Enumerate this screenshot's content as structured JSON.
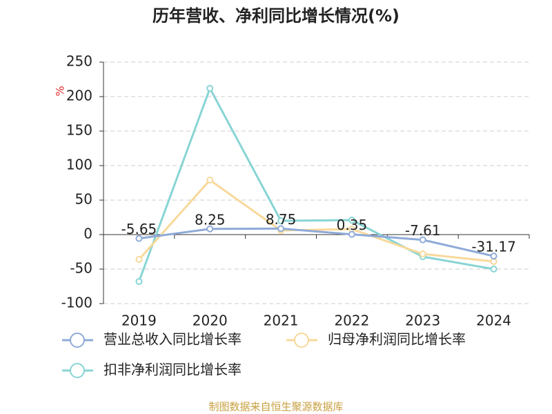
{
  "chart_data": {
    "type": "line",
    "title": "历年营收、净利同比增长情况(%)",
    "y_label": "%",
    "categories": [
      "2019",
      "2020",
      "2021",
      "2022",
      "2023",
      "2024"
    ],
    "series": [
      {
        "name": "营业总收入同比增长率",
        "color": "#8eaad8",
        "values": [
          -5.65,
          8.25,
          8.75,
          0.35,
          -7.61,
          -31.17
        ],
        "show_labels": true
      },
      {
        "name": "归母净利润同比增长率",
        "color": "#f8d89a",
        "values": [
          -36,
          79,
          6,
          8,
          -28,
          -39
        ]
      },
      {
        "name": "扣非净利润同比增长率",
        "color": "#88d4d4",
        "values": [
          -68,
          212,
          20,
          21,
          -32,
          -50
        ]
      }
    ],
    "ylim": [
      -100,
      250
    ],
    "yticks": [
      -100,
      -50,
      0,
      50,
      100,
      150,
      200,
      250
    ],
    "grid": true,
    "source": "制图数据来自恒生聚源数据库"
  }
}
